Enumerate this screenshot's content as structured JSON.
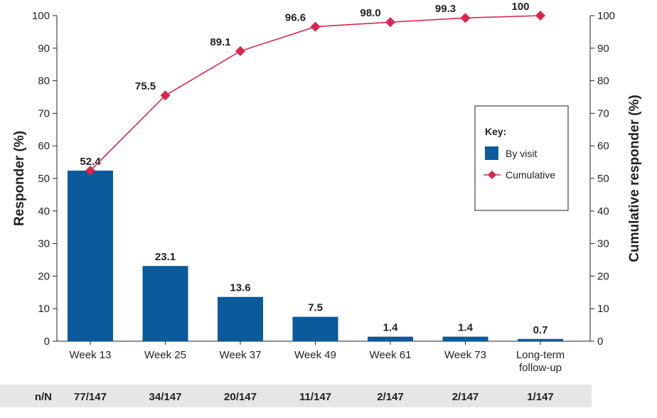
{
  "chart_data": {
    "type": "bar",
    "categories": [
      [
        "Week 13"
      ],
      [
        "Week 25"
      ],
      [
        "Week 37"
      ],
      [
        "Week 49"
      ],
      [
        "Week 61"
      ],
      [
        "Week 73"
      ],
      [
        "Long-term",
        "follow-up"
      ]
    ],
    "series": [
      {
        "name": "By visit",
        "type": "bar",
        "values": [
          52.4,
          23.1,
          13.6,
          7.5,
          1.4,
          1.4,
          0.7
        ],
        "labels": [
          "52.4",
          "23.1",
          "13.6",
          "7.5",
          "1.4",
          "1.4",
          "0.7"
        ],
        "color": "#0a5a9c"
      },
      {
        "name": "Cumulative",
        "type": "line",
        "values": [
          52.4,
          75.5,
          89.1,
          96.6,
          98.0,
          99.3,
          100
        ],
        "labels": [
          "52.4",
          "75.5",
          "89.1",
          "96.6",
          "98.0",
          "99.3",
          "100"
        ],
        "color": "#d7264b"
      }
    ],
    "ylabel": "Responder (%)",
    "y2label": "Cumulative responder (%)",
    "ylim": [
      0,
      100
    ],
    "y2lim": [
      0,
      100
    ],
    "yticks": [
      0,
      10,
      20,
      30,
      40,
      50,
      60,
      70,
      80,
      90,
      100
    ],
    "legend": {
      "title": "Key:",
      "placement": "right"
    },
    "grid": false,
    "table_row": {
      "label": "n/N",
      "values": [
        "77/147",
        "34/147",
        "20/147",
        "11/147",
        "2/147",
        "2/147",
        "1/147"
      ],
      "background": "#e6e6e6"
    }
  }
}
